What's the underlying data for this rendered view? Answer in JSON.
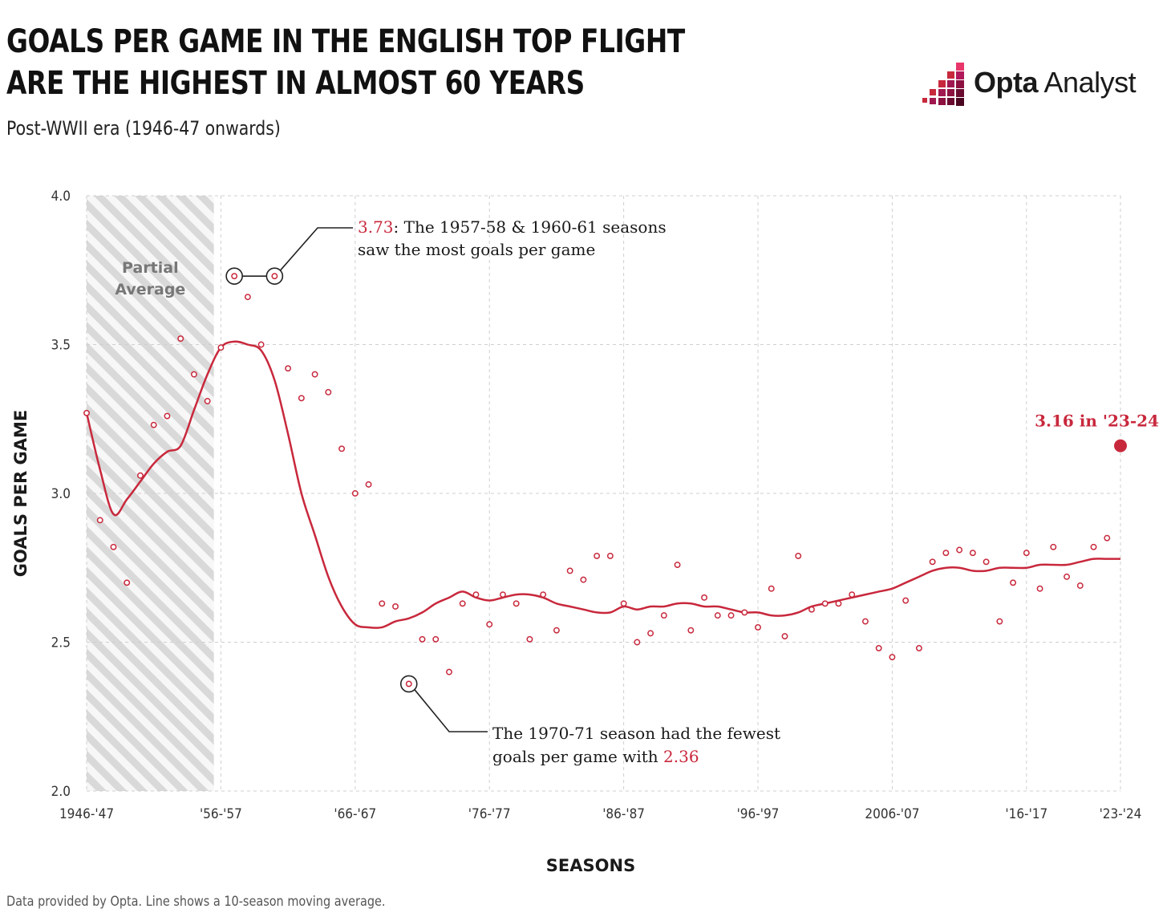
{
  "header": {
    "title": "GOALS PER GAME IN THE ENGLISH TOP FLIGHT ARE THE HIGHEST IN ALMOST 60 YEARS",
    "subtitle": "Post-WWII era (1946-47 onwards)"
  },
  "logo": {
    "bold": "Opta",
    "regular": " Analyst"
  },
  "footer": "Data provided by Opta. Line shows a 10-season moving average.",
  "colors": {
    "accent": "#c8283c",
    "grid": "#cfcfcf",
    "hatch": "#d9d9d9"
  },
  "chart_data": {
    "type": "scatter",
    "ylabel": "GOALS PER GAME",
    "xlabel": "SEASONS",
    "ylim": [
      2.0,
      4.0
    ],
    "yticks": [
      "2.0",
      "2.5",
      "3.0",
      "3.5",
      "4.0"
    ],
    "xtick_labels": [
      {
        "season": "1946-47",
        "label": "1946-'47"
      },
      {
        "season": "1956-57",
        "label": "'56-'57"
      },
      {
        "season": "1966-67",
        "label": "'66-'67"
      },
      {
        "season": "1976-77",
        "label": "'76-'77"
      },
      {
        "season": "1986-87",
        "label": "'86-'87"
      },
      {
        "season": "1996-97",
        "label": "'96-'97"
      },
      {
        "season": "2006-07",
        "label": "2006-'07"
      },
      {
        "season": "2016-17",
        "label": "'16-'17"
      },
      {
        "season": "2023-24",
        "label": "'23-'24"
      }
    ],
    "partial_region": {
      "from": "1946-47",
      "to": "1955-56",
      "label_lines": [
        "Partial",
        "Average"
      ]
    },
    "grid": true,
    "series": [
      {
        "kind": "points",
        "seasons": [
          "1946-47",
          "1947-48",
          "1948-49",
          "1949-50",
          "1950-51",
          "1951-52",
          "1952-53",
          "1953-54",
          "1954-55",
          "1955-56",
          "1956-57",
          "1957-58",
          "1958-59",
          "1959-60",
          "1960-61",
          "1961-62",
          "1962-63",
          "1963-64",
          "1964-65",
          "1965-66",
          "1966-67",
          "1967-68",
          "1968-69",
          "1969-70",
          "1970-71",
          "1971-72",
          "1972-73",
          "1973-74",
          "1974-75",
          "1975-76",
          "1976-77",
          "1977-78",
          "1978-79",
          "1979-80",
          "1980-81",
          "1981-82",
          "1982-83",
          "1983-84",
          "1984-85",
          "1985-86",
          "1986-87",
          "1987-88",
          "1988-89",
          "1989-90",
          "1990-91",
          "1991-92",
          "1992-93",
          "1993-94",
          "1994-95",
          "1995-96",
          "1996-97",
          "1997-98",
          "1998-99",
          "1999-00",
          "2000-01",
          "2001-02",
          "2002-03",
          "2003-04",
          "2004-05",
          "2005-06",
          "2006-07",
          "2007-08",
          "2008-09",
          "2009-10",
          "2010-11",
          "2011-12",
          "2012-13",
          "2013-14",
          "2014-15",
          "2015-16",
          "2016-17",
          "2017-18",
          "2018-19",
          "2019-20",
          "2020-21",
          "2021-22",
          "2022-23"
        ],
        "values": [
          3.27,
          2.91,
          2.82,
          2.7,
          3.06,
          3.23,
          3.26,
          3.52,
          3.4,
          3.31,
          3.49,
          3.73,
          3.66,
          3.5,
          3.73,
          3.42,
          3.32,
          3.4,
          3.34,
          3.15,
          3.0,
          3.03,
          2.63,
          2.62,
          2.36,
          2.51,
          2.51,
          2.4,
          2.63,
          2.66,
          2.56,
          2.66,
          2.63,
          2.51,
          2.66,
          2.54,
          2.74,
          2.71,
          2.79,
          2.79,
          2.63,
          2.5,
          2.53,
          2.59,
          2.76,
          2.54,
          2.65,
          2.59,
          2.59,
          2.6,
          2.55,
          2.68,
          2.52,
          2.79,
          2.61,
          2.63,
          2.63,
          2.66,
          2.57,
          2.48,
          2.45,
          2.64,
          2.48,
          2.77,
          2.8,
          2.81,
          2.8,
          2.77,
          2.57,
          2.7,
          2.8,
          2.68,
          2.82,
          2.72,
          2.69,
          2.82,
          2.85
        ]
      },
      {
        "kind": "moving_average",
        "seasons": [
          "1946-47",
          "1947-48",
          "1948-49",
          "1949-50",
          "1950-51",
          "1951-52",
          "1952-53",
          "1953-54",
          "1954-55",
          "1955-56",
          "1956-57",
          "1957-58",
          "1958-59",
          "1959-60",
          "1960-61",
          "1961-62",
          "1962-63",
          "1963-64",
          "1964-65",
          "1965-66",
          "1966-67",
          "1967-68",
          "1968-69",
          "1969-70",
          "1970-71",
          "1971-72",
          "1972-73",
          "1973-74",
          "1974-75",
          "1975-76",
          "1976-77",
          "1977-78",
          "1978-79",
          "1979-80",
          "1980-81",
          "1981-82",
          "1982-83",
          "1983-84",
          "1984-85",
          "1985-86",
          "1986-87",
          "1987-88",
          "1988-89",
          "1989-90",
          "1990-91",
          "1991-92",
          "1992-93",
          "1993-94",
          "1994-95",
          "1995-96",
          "1996-97",
          "1997-98",
          "1998-99",
          "1999-00",
          "2000-01",
          "2001-02",
          "2002-03",
          "2003-04",
          "2004-05",
          "2005-06",
          "2006-07",
          "2007-08",
          "2008-09",
          "2009-10",
          "2010-11",
          "2011-12",
          "2012-13",
          "2013-14",
          "2014-15",
          "2015-16",
          "2016-17",
          "2017-18",
          "2018-19",
          "2019-20",
          "2020-21",
          "2021-22",
          "2022-23",
          "2023-24"
        ],
        "values": [
          3.27,
          3.08,
          2.93,
          2.98,
          3.04,
          3.1,
          3.14,
          3.16,
          3.28,
          3.4,
          3.49,
          3.51,
          3.5,
          3.48,
          3.38,
          3.2,
          3.0,
          2.86,
          2.72,
          2.62,
          2.56,
          2.55,
          2.55,
          2.57,
          2.58,
          2.6,
          2.63,
          2.65,
          2.67,
          2.65,
          2.64,
          2.65,
          2.66,
          2.66,
          2.65,
          2.63,
          2.62,
          2.61,
          2.6,
          2.6,
          2.62,
          2.61,
          2.62,
          2.62,
          2.63,
          2.63,
          2.62,
          2.62,
          2.61,
          2.6,
          2.6,
          2.59,
          2.59,
          2.6,
          2.62,
          2.63,
          2.64,
          2.65,
          2.66,
          2.67,
          2.68,
          2.7,
          2.72,
          2.74,
          2.75,
          2.75,
          2.74,
          2.74,
          2.75,
          2.75,
          2.75,
          2.76,
          2.76,
          2.76,
          2.77,
          2.78,
          2.78,
          2.78
        ]
      },
      {
        "kind": "highlight",
        "season": "2023-24",
        "value": 3.16,
        "label": "3.16 in '23-24"
      }
    ],
    "annotations": [
      {
        "value_text": "3.73",
        "text_line1": ": The 1957-58 & 1960-61 seasons",
        "text_line2": "saw the most goals per game",
        "seasons": [
          "1957-58",
          "1960-61"
        ]
      },
      {
        "text_line1": "The 1970-71 season had the fewest",
        "text_line2_prefix": "goals per game with ",
        "value_text": "2.36",
        "season": "1970-71"
      }
    ]
  }
}
